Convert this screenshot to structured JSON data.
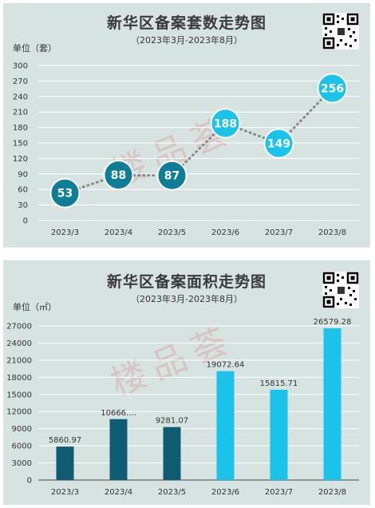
{
  "watermark_text": "楼品荟",
  "colors": {
    "panel_bg": "#d7e3e1",
    "grid": "#ffffff",
    "dark": "#0e7d96",
    "light": "#1ac3ea",
    "bar_dark": "#0f5c72",
    "bar_light": "#19c3ea",
    "line": "#888888"
  },
  "chart_data": [
    {
      "type": "line",
      "title": "新华区备案套数走势图",
      "subtitle": "（2023年3月-2023年8月）",
      "unit_label": "单位（套）",
      "categories": [
        "2023/3",
        "2023/4",
        "2023/5",
        "2023/6",
        "2023/7",
        "2023/8"
      ],
      "values": [
        53,
        88,
        87,
        188,
        149,
        256
      ],
      "value_labels": [
        "53",
        "88",
        "87",
        "188",
        "149",
        "256"
      ],
      "ylim": [
        0,
        300
      ],
      "yticks": [
        0,
        30,
        60,
        90,
        120,
        150,
        180,
        210,
        240,
        270,
        300
      ],
      "grid": true,
      "marker_colors": [
        "dark",
        "dark",
        "dark",
        "light",
        "light",
        "light"
      ]
    },
    {
      "type": "bar",
      "title": "新华区备案面积走势图",
      "subtitle": "（2023年3月-2023年8月）",
      "unit_label": "单位（㎡）",
      "categories": [
        "2023/3",
        "2023/4",
        "2023/5",
        "2023/6",
        "2023/7",
        "2023/8"
      ],
      "values": [
        5860.97,
        10666,
        9281.07,
        19072.64,
        15815.71,
        26579.28
      ],
      "value_labels": [
        "5860.97",
        "10666....",
        "9281.07",
        "19072.64",
        "15815.71",
        "26579.28"
      ],
      "ylim": [
        0,
        27000
      ],
      "yticks": [
        0,
        3000,
        6000,
        9000,
        12000,
        15000,
        18000,
        21000,
        24000,
        27000
      ],
      "grid": true,
      "bar_colors": [
        "bar_dark",
        "bar_dark",
        "bar_dark",
        "bar_light",
        "bar_light",
        "bar_light"
      ]
    }
  ]
}
